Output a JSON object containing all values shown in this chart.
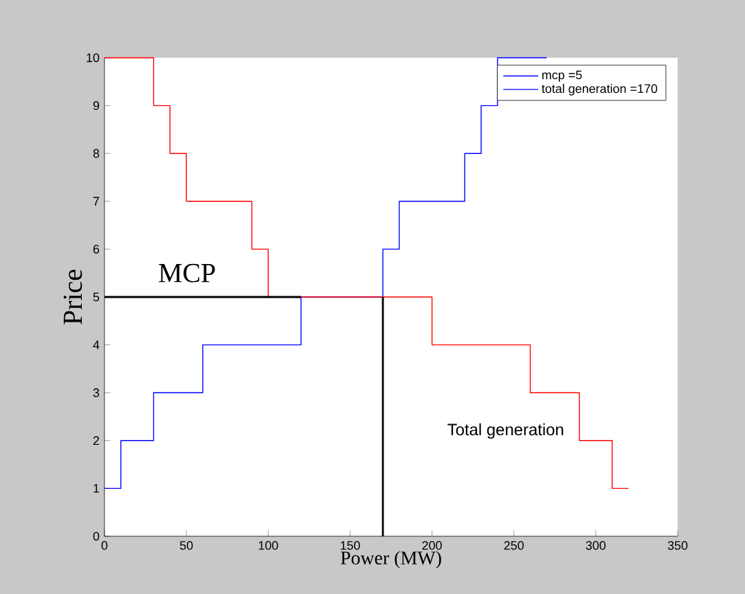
{
  "chart_data": {
    "type": "line",
    "xlabel": "Power (MW)",
    "ylabel": "Price",
    "xlim": [
      0,
      350
    ],
    "ylim": [
      0,
      10
    ],
    "xticks": [
      0,
      50,
      100,
      150,
      200,
      250,
      300,
      350
    ],
    "yticks": [
      0,
      1,
      2,
      3,
      4,
      5,
      6,
      7,
      8,
      9,
      10
    ],
    "legend": "top right",
    "series": [
      {
        "name": "mcp =5",
        "color": "#0000ff",
        "x": [
          0,
          10,
          10,
          30,
          30,
          60,
          60,
          120,
          120,
          170
        ],
        "values": [
          1,
          1,
          2,
          2,
          3,
          3,
          4,
          4,
          5,
          5
        ]
      },
      {
        "name": "total generation =170",
        "color": "#0000ff",
        "x": [
          170,
          170,
          180,
          180,
          220,
          220,
          230,
          230,
          240,
          240,
          270
        ],
        "values": [
          5,
          6,
          6,
          7,
          7,
          8,
          8,
          9,
          9,
          10,
          10
        ]
      },
      {
        "color": "#ff0000",
        "x": [
          0,
          30,
          30,
          40,
          40,
          50,
          50,
          90,
          90,
          100,
          100,
          200,
          200,
          260,
          260,
          290,
          290,
          310,
          310,
          320
        ],
        "values": [
          10,
          10,
          9,
          9,
          8,
          8,
          7,
          7,
          6,
          6,
          5,
          5,
          4,
          4,
          3,
          3,
          2,
          2,
          1,
          1
        ]
      },
      {
        "color": "#000000",
        "x": [
          0,
          120
        ],
        "values": [
          5,
          5
        ]
      },
      {
        "color": "#000000",
        "x": [
          170,
          170
        ],
        "values": [
          0,
          5
        ]
      }
    ],
    "annotations": [
      "MCP",
      "Total generation"
    ]
  }
}
